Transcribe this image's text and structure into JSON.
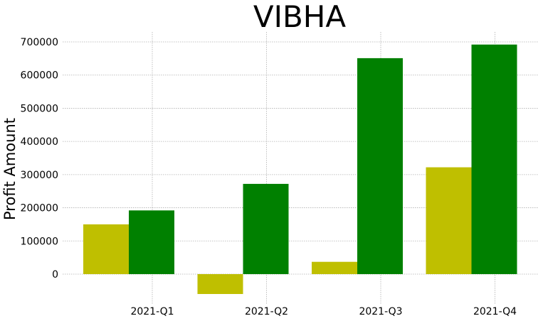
{
  "chart_data": {
    "type": "bar",
    "title": "VIBHA",
    "xlabel": "",
    "ylabel": "Profit Amount",
    "categories": [
      "2021-Q1",
      "2021-Q2",
      "2021-Q3",
      "2021-Q4"
    ],
    "series": [
      {
        "color": "#bfbf00",
        "values": [
          150000,
          -60000,
          37000,
          322000
        ]
      },
      {
        "color": "#008000",
        "values": [
          192000,
          272000,
          651000,
          692000
        ]
      }
    ],
    "yticks": [
      0,
      100000,
      200000,
      300000,
      400000,
      500000,
      600000,
      700000
    ],
    "ytick_labels": [
      "0",
      "100000",
      "200000",
      "300000",
      "400000",
      "500000",
      "600000",
      "700000"
    ],
    "ylim": [
      -90000,
      730000
    ],
    "grid": true,
    "legend": "none"
  }
}
